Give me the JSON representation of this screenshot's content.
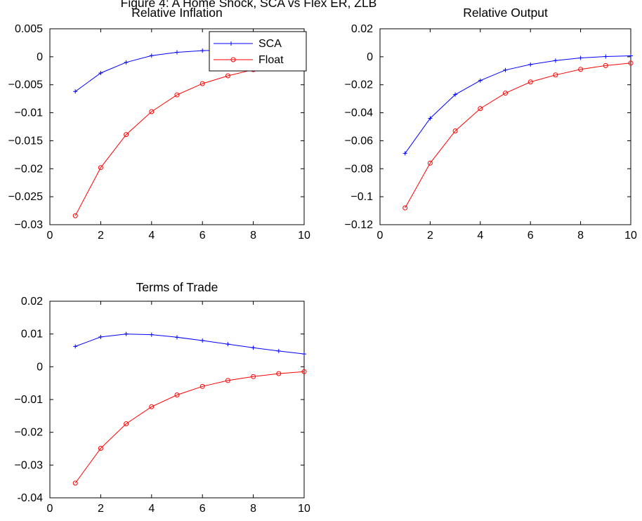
{
  "figure": {
    "title": "Figure 4: A Home Shock, SCA vs Flex ER, ZLB"
  },
  "legend": {
    "entries": [
      "SCA",
      "Float"
    ]
  },
  "colors": {
    "sca": "#0000ff",
    "float": "#ff0000",
    "axes": "#000000",
    "background": "#ffffff"
  },
  "chart_data": [
    {
      "type": "line",
      "title": "Relative Inflation",
      "xlim": [
        0,
        10
      ],
      "ylim": [
        -0.03,
        0.005
      ],
      "xticks": [
        0,
        2,
        4,
        6,
        8,
        10
      ],
      "yticks": [
        -0.03,
        -0.025,
        -0.02,
        -0.015,
        -0.01,
        -0.005,
        0,
        0.005
      ],
      "ytick_labels": [
        "−0.03",
        "−0.025",
        "−0.02",
        "−0.015",
        "−0.01",
        "−0.005",
        "0",
        "0.005"
      ],
      "xtick_labels": [
        "0",
        "2",
        "4",
        "6",
        "8",
        "10"
      ],
      "grid": false,
      "legend": "top-right",
      "x": [
        1,
        2,
        3,
        4,
        5,
        6,
        7,
        8,
        9,
        10
      ],
      "series": [
        {
          "name": "SCA",
          "marker": "+",
          "values": [
            -0.0062,
            -0.0029,
            -0.001,
            0.0002,
            0.0008,
            0.0011,
            0.0012,
            0.0012,
            0.0011,
            0.0009
          ]
        },
        {
          "name": "Float",
          "marker": "o",
          "values": [
            -0.0284,
            -0.0198,
            -0.0139,
            -0.0098,
            -0.0068,
            -0.0048,
            -0.0034,
            -0.0023,
            -0.0016,
            -0.0011
          ]
        }
      ]
    },
    {
      "type": "line",
      "title": "Relative Output",
      "xlim": [
        0,
        10
      ],
      "ylim": [
        -0.12,
        0.02
      ],
      "xticks": [
        0,
        2,
        4,
        6,
        8,
        10
      ],
      "yticks": [
        -0.12,
        -0.1,
        -0.08,
        -0.06,
        -0.04,
        -0.02,
        0,
        0.02
      ],
      "ytick_labels": [
        "−0.12",
        "−0.1",
        "−0.08",
        "−0.06",
        "−0.04",
        "−0.02",
        "0",
        "0.02"
      ],
      "xtick_labels": [
        "0",
        "2",
        "4",
        "6",
        "8",
        "10"
      ],
      "grid": false,
      "x": [
        1,
        2,
        3,
        4,
        5,
        6,
        7,
        8,
        9,
        10
      ],
      "series": [
        {
          "name": "SCA",
          "marker": "+",
          "values": [
            -0.069,
            -0.044,
            -0.027,
            -0.017,
            -0.0095,
            -0.0055,
            -0.0027,
            -0.0008,
            0.0002,
            0.0007
          ]
        },
        {
          "name": "Float",
          "marker": "o",
          "values": [
            -0.108,
            -0.076,
            -0.053,
            -0.037,
            -0.026,
            -0.018,
            -0.013,
            -0.009,
            -0.0063,
            -0.0045
          ]
        }
      ]
    },
    {
      "type": "line",
      "title": "Terms of Trade",
      "xlim": [
        0,
        10
      ],
      "ylim": [
        -0.04,
        0.02
      ],
      "xticks": [
        0,
        2,
        4,
        6,
        8,
        10
      ],
      "yticks": [
        -0.04,
        -0.03,
        -0.02,
        -0.01,
        0,
        0.01,
        0.02
      ],
      "ytick_labels": [
        "-0.04",
        "−0.03",
        "−0.02",
        "−0.01",
        "0",
        "0.01",
        "0.02"
      ],
      "xtick_labels": [
        "0",
        "2",
        "4",
        "6",
        "8",
        "10"
      ],
      "grid": false,
      "x": [
        1,
        2,
        3,
        4,
        5,
        6,
        7,
        8,
        9,
        10
      ],
      "series": [
        {
          "name": "SCA",
          "marker": "+",
          "values": [
            0.0062,
            0.0091,
            0.01,
            0.0098,
            0.009,
            0.008,
            0.0069,
            0.0058,
            0.0048,
            0.0039
          ]
        },
        {
          "name": "Float",
          "marker": "o",
          "values": [
            -0.0355,
            -0.0249,
            -0.0174,
            -0.0122,
            -0.0086,
            -0.006,
            -0.0042,
            -0.003,
            -0.0021,
            -0.0015
          ]
        }
      ]
    }
  ]
}
